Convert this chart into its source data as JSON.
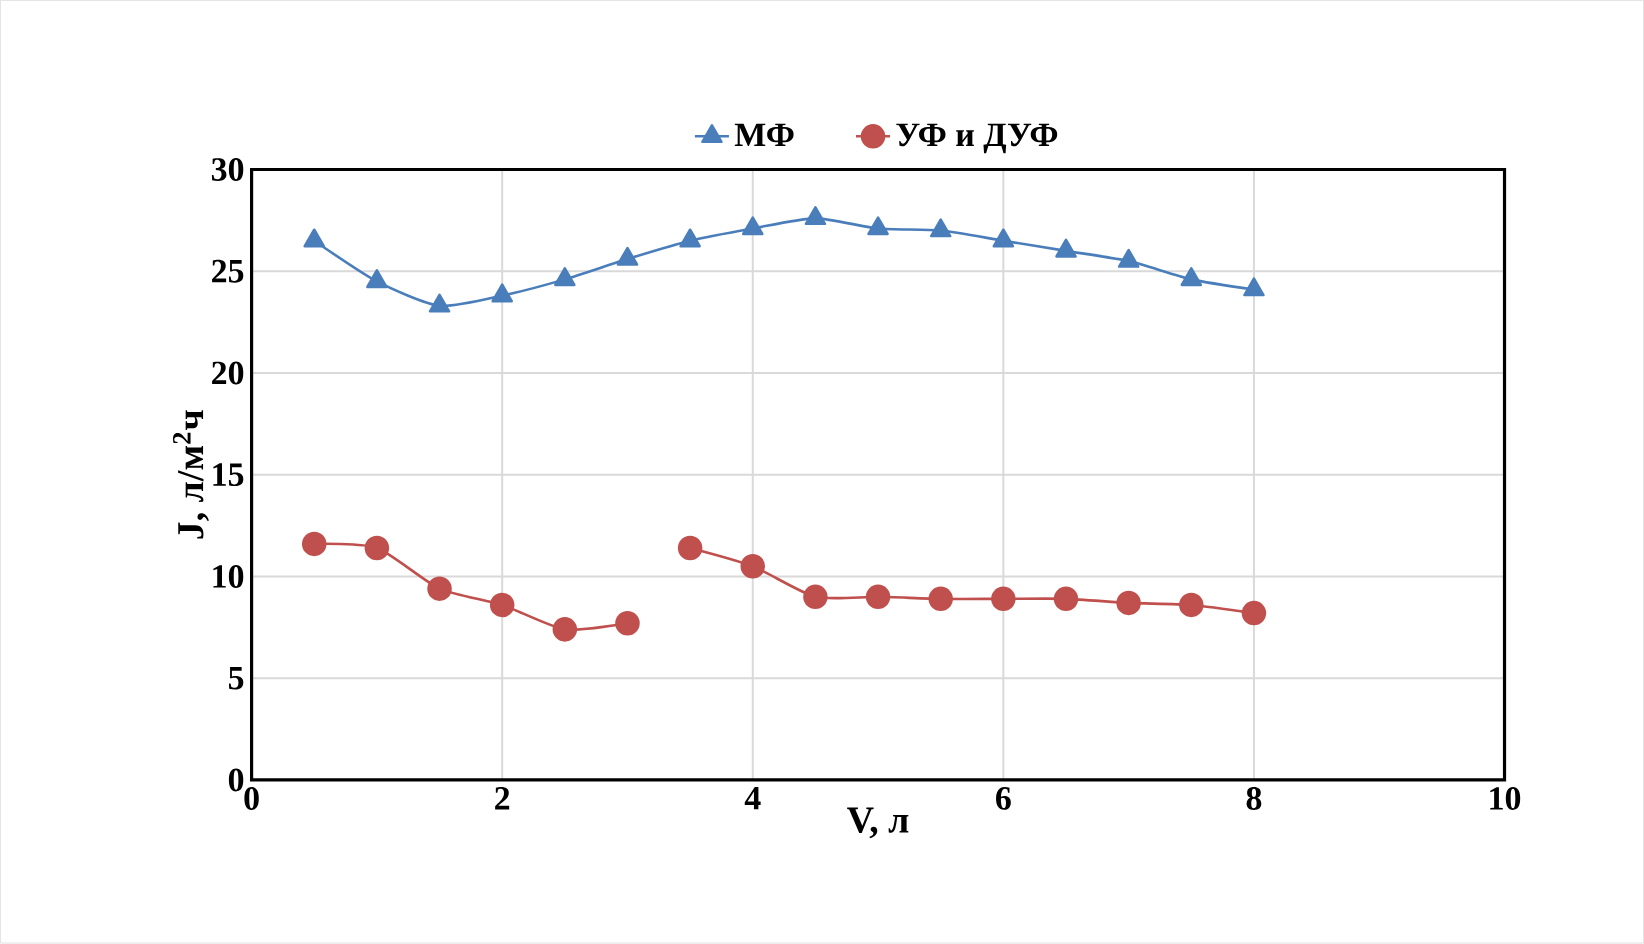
{
  "chart_data": {
    "type": "line",
    "xlabel": "V, л",
    "ylabel": "J, л/м$^{2}$ч",
    "xlim": [
      0,
      10
    ],
    "xticks": [
      0,
      2,
      4,
      6,
      8,
      10
    ],
    "ylim": [
      0,
      30
    ],
    "yticks": [
      0,
      5,
      10,
      15,
      20,
      25,
      30
    ],
    "grid": true,
    "legend": "top",
    "series": [
      {
        "name": "МФ",
        "color": "#4a7ebb",
        "marker": "triangle",
        "x": [
          0.5,
          1,
          1.5,
          2,
          2.5,
          3,
          3.5,
          4,
          4.5,
          5,
          5.5,
          6,
          6.5,
          7,
          7.5,
          8
        ],
        "values": [
          26.5,
          24.5,
          23.3,
          23.8,
          24.6,
          25.6,
          26.5,
          27.1,
          27.6,
          27.1,
          27.0,
          26.5,
          26.0,
          25.5,
          24.6,
          24.1
        ]
      },
      {
        "name": "УФ и ДУФ",
        "color": "#c0504d",
        "marker": "circle",
        "x": [
          0.5,
          1,
          1.5,
          2,
          2.5,
          3,
          3.25,
          3.5,
          4,
          4.5,
          5,
          5.5,
          6,
          6.5,
          7,
          7.5,
          8
        ],
        "values": [
          11.6,
          11.4,
          9.4,
          8.6,
          7.4,
          7.7,
          null,
          11.4,
          10.5,
          9.0,
          9.0,
          8.9,
          8.9,
          8.9,
          8.7,
          8.6,
          8.2
        ]
      }
    ]
  }
}
